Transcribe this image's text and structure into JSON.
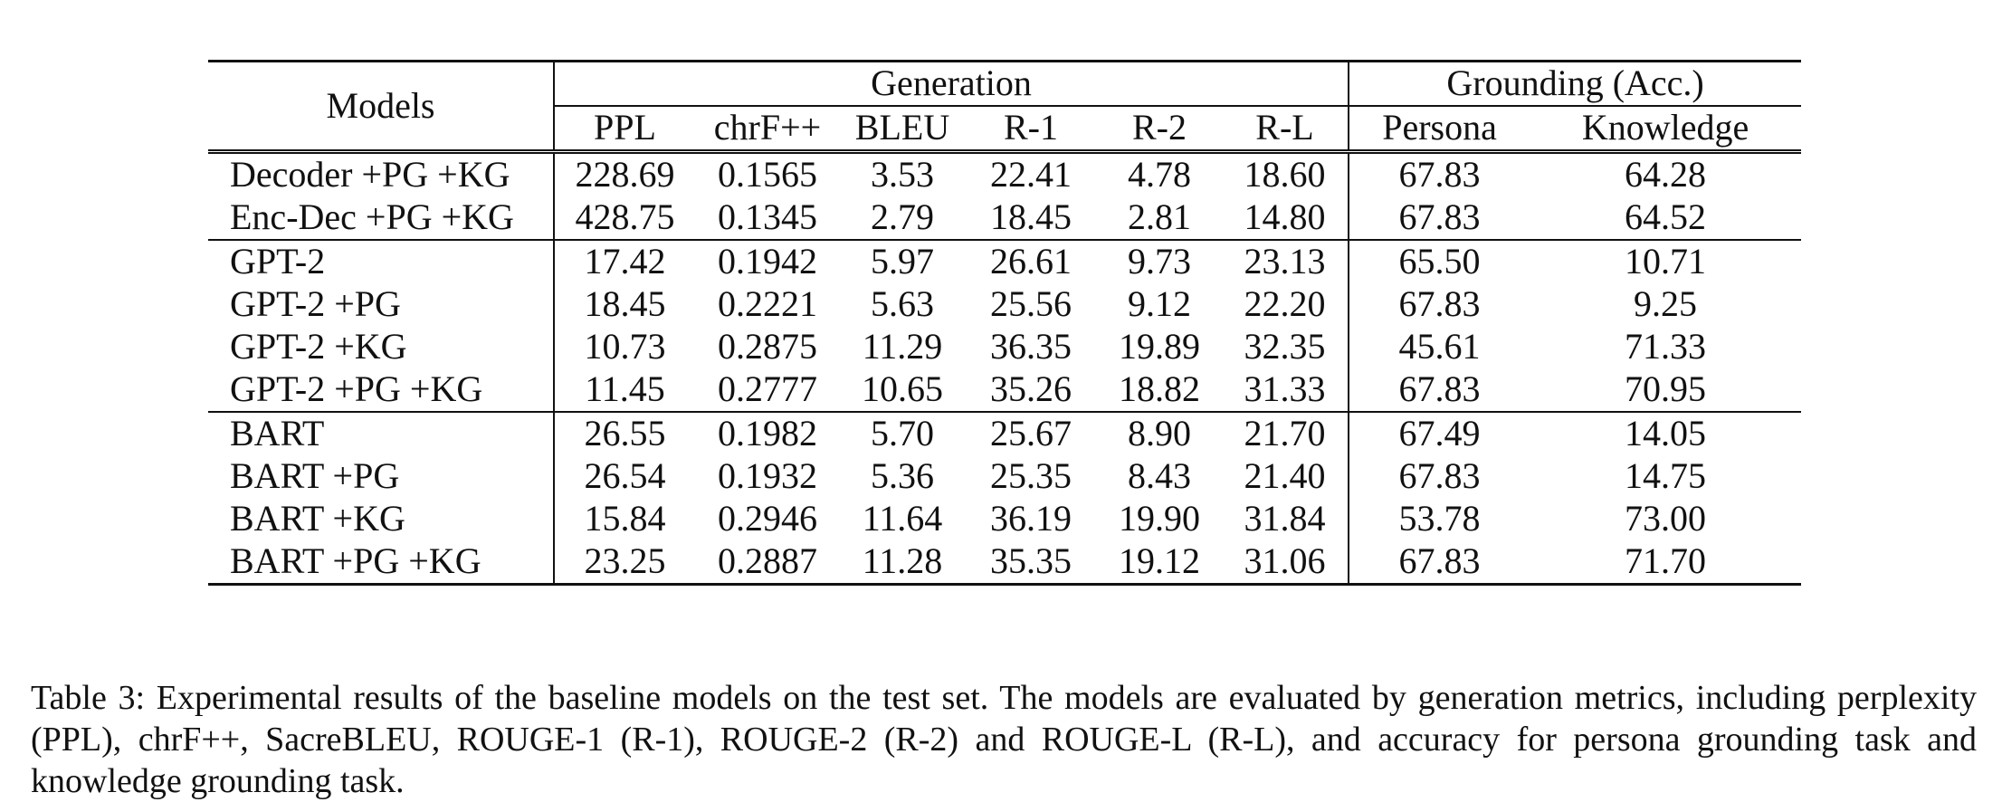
{
  "table": {
    "header": {
      "models_label": "Models",
      "generation_label": "Generation",
      "grounding_label": "Grounding (Acc.)",
      "columns": [
        "PPL",
        "chrF++",
        "BLEU",
        "R-1",
        "R-2",
        "R-L",
        "Persona",
        "Knowledge"
      ]
    },
    "groups": [
      {
        "rows": [
          {
            "model": "Decoder +PG +KG",
            "values": [
              "228.69",
              "0.1565",
              "3.53",
              "22.41",
              "4.78",
              "18.60",
              "67.83",
              "64.28"
            ],
            "bold": [
              6
            ]
          },
          {
            "model": "Enc-Dec +PG +KG",
            "values": [
              "428.75",
              "0.1345",
              "2.79",
              "18.45",
              "2.81",
              "14.80",
              "67.83",
              "64.52"
            ],
            "bold": [
              6
            ]
          }
        ]
      },
      {
        "rows": [
          {
            "model": "GPT-2",
            "values": [
              "17.42",
              "0.1942",
              "5.97",
              "26.61",
              "9.73",
              "23.13",
              "65.50",
              "10.71"
            ],
            "bold": []
          },
          {
            "model": "GPT-2 +PG",
            "values": [
              "18.45",
              "0.2221",
              "5.63",
              "25.56",
              "9.12",
              "22.20",
              "67.83",
              "9.25"
            ],
            "bold": [
              6
            ]
          },
          {
            "model": "GPT-2 +KG",
            "values": [
              "10.73",
              "0.2875",
              "11.29",
              "36.35",
              "19.89",
              "32.35",
              "45.61",
              "71.33"
            ],
            "bold": [
              0
            ]
          },
          {
            "model": "GPT-2 +PG +KG",
            "values": [
              "11.45",
              "0.2777",
              "10.65",
              "35.26",
              "18.82",
              "31.33",
              "67.83",
              "70.95"
            ],
            "bold": [
              6
            ]
          }
        ]
      },
      {
        "rows": [
          {
            "model": "BART",
            "values": [
              "26.55",
              "0.1982",
              "5.70",
              "25.67",
              "8.90",
              "21.70",
              "67.49",
              "14.05"
            ],
            "bold": []
          },
          {
            "model": "BART +PG",
            "values": [
              "26.54",
              "0.1932",
              "5.36",
              "25.35",
              "8.43",
              "21.40",
              "67.83",
              "14.75"
            ],
            "bold": [
              6
            ]
          },
          {
            "model": "BART +KG",
            "values": [
              "15.84",
              "0.2946",
              "11.64",
              "36.19",
              "19.90",
              "31.84",
              "53.78",
              "73.00"
            ],
            "bold": [
              1,
              2,
              3,
              4,
              5,
              7
            ]
          },
          {
            "model": "BART +PG +KG",
            "values": [
              "23.25",
              "0.2887",
              "11.28",
              "35.35",
              "19.12",
              "31.06",
              "67.83",
              "71.70"
            ],
            "bold": [
              6
            ]
          }
        ]
      }
    ]
  },
  "caption": "Table 3: Experimental results of the baseline models on the test set. The models are evaluated by generation metrics, including perplexity (PPL), chrF++, SacreBLEU, ROUGE-1 (R-1), ROUGE-2 (R-2) and ROUGE-L (R-L), and accuracy for persona grounding task and knowledge grounding task."
}
